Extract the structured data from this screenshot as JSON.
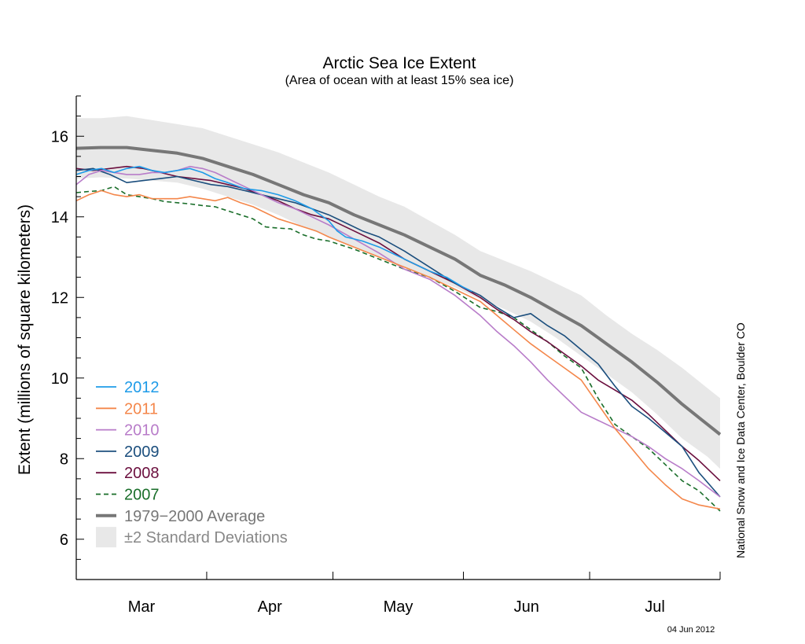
{
  "chart_data": {
    "type": "line",
    "title": "Arctic Sea Ice Extent",
    "subtitle": "(Area of ocean with at least 15% sea ice)",
    "ylabel": "Extent (millions of square kilometers)",
    "xlabel": "",
    "ylim": [
      5,
      17
    ],
    "yticks": [
      6,
      8,
      10,
      12,
      14,
      16
    ],
    "xlim": [
      0,
      153
    ],
    "month_boundaries": [
      0,
      31,
      61,
      92,
      122,
      153
    ],
    "month_labels": [
      {
        "label": "Mar",
        "x": 15.5
      },
      {
        "label": "Apr",
        "x": 46
      },
      {
        "label": "May",
        "x": 76.5
      },
      {
        "label": "Jun",
        "x": 107
      },
      {
        "label": "Jul",
        "x": 137.5
      }
    ],
    "grid": false,
    "legend_position": "bottom-left",
    "credit": "National Snow and Ice Data Center, Boulder CO",
    "date_stamp": "04 Jun 2012",
    "average": {
      "name": "1979−2000 Average",
      "color": "#777777",
      "x": [
        0,
        6,
        12,
        18,
        24,
        30,
        36,
        42,
        48,
        54,
        60,
        66,
        72,
        78,
        84,
        90,
        96,
        102,
        108,
        114,
        120,
        126,
        132,
        138,
        144,
        150,
        153
      ],
      "values": [
        15.7,
        15.72,
        15.72,
        15.65,
        15.58,
        15.45,
        15.25,
        15.05,
        14.8,
        14.55,
        14.35,
        14.05,
        13.8,
        13.55,
        13.25,
        12.95,
        12.55,
        12.3,
        12.0,
        11.65,
        11.3,
        10.85,
        10.4,
        9.9,
        9.35,
        8.85,
        8.6
      ]
    },
    "std_band": {
      "name": "±2 Standard Deviations",
      "color": "#e8e8e8",
      "x": [
        0,
        6,
        12,
        18,
        24,
        30,
        36,
        42,
        48,
        54,
        60,
        66,
        72,
        78,
        84,
        90,
        96,
        102,
        108,
        114,
        120,
        126,
        132,
        138,
        144,
        150,
        153
      ],
      "upper": [
        16.45,
        16.45,
        16.5,
        16.4,
        16.3,
        16.2,
        16.0,
        15.8,
        15.6,
        15.35,
        15.1,
        14.8,
        14.5,
        14.25,
        13.9,
        13.55,
        13.15,
        12.9,
        12.65,
        12.35,
        12.05,
        11.55,
        11.1,
        10.7,
        10.25,
        9.75,
        9.5
      ],
      "lower": [
        14.95,
        14.98,
        14.95,
        14.9,
        14.85,
        14.7,
        14.5,
        14.3,
        14.05,
        13.75,
        13.5,
        13.25,
        13.0,
        12.75,
        12.5,
        12.25,
        11.95,
        11.7,
        11.4,
        11.0,
        10.55,
        10.1,
        9.65,
        9.1,
        8.5,
        8.05,
        7.75
      ]
    },
    "series": [
      {
        "name": "2007",
        "color": "#1a6e2a",
        "dashed": true,
        "x": [
          0,
          3,
          6,
          9,
          12,
          15,
          18,
          21,
          24,
          27,
          30,
          33,
          36,
          39,
          42,
          45,
          48,
          51,
          54,
          57,
          60,
          66,
          72,
          78,
          84,
          90,
          96,
          100,
          104,
          108,
          112,
          116,
          120,
          124,
          128,
          132,
          136,
          140,
          144,
          148,
          153
        ],
        "values": [
          14.6,
          14.63,
          14.65,
          14.75,
          14.55,
          14.5,
          14.45,
          14.38,
          14.35,
          14.32,
          14.28,
          14.25,
          14.15,
          14.05,
          13.95,
          13.75,
          13.72,
          13.7,
          13.55,
          13.45,
          13.4,
          13.2,
          12.95,
          12.7,
          12.5,
          12.15,
          11.75,
          11.65,
          11.5,
          11.2,
          10.9,
          10.55,
          10.25,
          9.5,
          8.85,
          8.55,
          8.25,
          7.85,
          7.45,
          7.2,
          6.7
        ]
      },
      {
        "name": "2008",
        "color": "#6b0f3e",
        "dashed": false,
        "x": [
          0,
          4,
          8,
          12,
          16,
          20,
          24,
          28,
          32,
          36,
          40,
          44,
          48,
          52,
          56,
          60,
          66,
          72,
          78,
          84,
          90,
          96,
          100,
          104,
          108,
          112,
          116,
          120,
          124,
          128,
          132,
          136,
          140,
          144,
          148,
          153
        ],
        "values": [
          15.2,
          15.15,
          15.2,
          15.25,
          15.2,
          15.1,
          15.0,
          14.95,
          14.9,
          14.8,
          14.7,
          14.55,
          14.4,
          14.2,
          14.05,
          13.95,
          13.65,
          13.35,
          12.95,
          12.65,
          12.35,
          12.0,
          11.7,
          11.45,
          11.15,
          10.9,
          10.6,
          10.3,
          9.95,
          9.7,
          9.45,
          9.1,
          8.7,
          8.3,
          7.95,
          7.45
        ]
      },
      {
        "name": "2009",
        "color": "#1b4e7d",
        "dashed": false,
        "x": [
          0,
          4,
          8,
          12,
          16,
          20,
          24,
          28,
          32,
          36,
          40,
          44,
          48,
          52,
          56,
          60,
          64,
          68,
          72,
          78,
          84,
          90,
          96,
          100,
          104,
          108,
          112,
          116,
          120,
          124,
          128,
          132,
          136,
          140,
          144,
          148,
          153
        ],
        "values": [
          15.15,
          15.2,
          15.05,
          14.85,
          14.9,
          14.95,
          15.0,
          14.9,
          14.8,
          14.75,
          14.65,
          14.55,
          14.45,
          14.35,
          14.2,
          14.05,
          13.85,
          13.65,
          13.5,
          13.15,
          12.75,
          12.35,
          12.05,
          11.75,
          11.5,
          11.6,
          11.3,
          11.05,
          10.7,
          10.35,
          9.8,
          9.3,
          9.0,
          8.65,
          8.3,
          7.65,
          7.05
        ]
      },
      {
        "name": "2010",
        "color": "#b87cc9",
        "dashed": false,
        "x": [
          0,
          3,
          6,
          9,
          12,
          15,
          18,
          21,
          24,
          27,
          30,
          33,
          36,
          40,
          44,
          48,
          52,
          56,
          60,
          66,
          72,
          78,
          84,
          90,
          96,
          100,
          104,
          108,
          112,
          116,
          120,
          124,
          128,
          132,
          136,
          140,
          144,
          148,
          153
        ],
        "values": [
          14.8,
          15.05,
          15.15,
          15.1,
          15.05,
          15.05,
          15.1,
          15.1,
          15.15,
          15.25,
          15.2,
          15.1,
          14.95,
          14.75,
          14.55,
          14.35,
          14.2,
          14.0,
          13.8,
          13.45,
          13.1,
          12.7,
          12.45,
          12.05,
          11.55,
          11.15,
          10.8,
          10.4,
          9.95,
          9.55,
          9.15,
          8.95,
          8.75,
          8.55,
          8.3,
          8.0,
          7.75,
          7.45,
          7.05
        ]
      },
      {
        "name": "2011",
        "color": "#f4874b",
        "dashed": false,
        "x": [
          0,
          3,
          6,
          9,
          12,
          15,
          18,
          21,
          24,
          27,
          30,
          33,
          36,
          39,
          42,
          45,
          48,
          51,
          54,
          57,
          60,
          66,
          72,
          78,
          84,
          90,
          96,
          100,
          104,
          108,
          112,
          116,
          120,
          124,
          128,
          132,
          136,
          140,
          144,
          148,
          153
        ],
        "values": [
          14.4,
          14.55,
          14.65,
          14.55,
          14.5,
          14.55,
          14.45,
          14.45,
          14.45,
          14.5,
          14.45,
          14.4,
          14.48,
          14.35,
          14.25,
          14.1,
          13.95,
          13.85,
          13.75,
          13.65,
          13.5,
          13.25,
          13.0,
          12.75,
          12.5,
          12.2,
          11.9,
          11.55,
          11.2,
          10.85,
          10.55,
          10.25,
          9.95,
          9.35,
          8.75,
          8.25,
          7.75,
          7.35,
          7.0,
          6.85,
          6.75
        ]
      },
      {
        "name": "2012",
        "color": "#1e9be8",
        "dashed": false,
        "x": [
          0,
          3,
          6,
          9,
          12,
          15,
          18,
          21,
          24,
          27,
          30,
          33,
          36,
          40,
          44,
          48,
          52,
          56,
          60,
          62,
          64,
          66,
          68,
          72,
          76,
          80,
          84,
          88,
          92,
          94
        ],
        "values": [
          15.05,
          15.15,
          15.2,
          15.1,
          15.2,
          15.25,
          15.15,
          15.1,
          15.15,
          15.2,
          15.1,
          14.95,
          14.85,
          14.7,
          14.65,
          14.55,
          14.4,
          14.2,
          13.9,
          13.65,
          13.5,
          13.45,
          13.4,
          13.25,
          13.05,
          12.85,
          12.65,
          12.5,
          12.25,
          12.15
        ]
      }
    ]
  }
}
